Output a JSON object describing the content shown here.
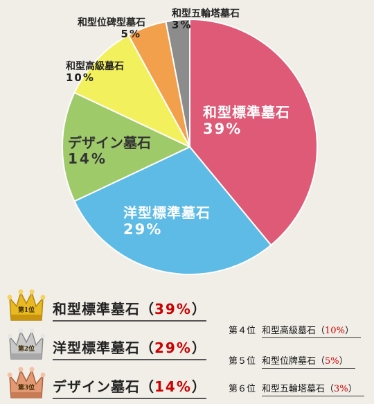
{
  "chart_data": {
    "type": "pie",
    "categories": [
      "和型標準墓石",
      "洋型標準墓石",
      "デザイン墓石",
      "和型高級墓石",
      "和型位碑型墓石",
      "和型五輪塔墓石"
    ],
    "values": [
      39,
      29,
      14,
      10,
      5,
      3
    ],
    "colors": [
      "#de5a76",
      "#5ebbe6",
      "#9fca6a",
      "#f3f05e",
      "#f2a04c",
      "#8c8c8c"
    ],
    "value_labels": [
      "39%",
      "29%",
      "14%",
      "10%",
      "5%",
      "3%"
    ],
    "title": ""
  },
  "ranking": {
    "top": [
      {
        "badge": "第1位",
        "name": "和型標準墓石",
        "open": "（",
        "pct": "39%",
        "close": "）",
        "medal": "gold"
      },
      {
        "badge": "第2位",
        "name": "洋型標準墓石",
        "open": "（",
        "pct": "29%",
        "close": "）",
        "medal": "silver"
      },
      {
        "badge": "第3位",
        "name": "デザイン墓石",
        "open": "（",
        "pct": "14%",
        "close": "）",
        "medal": "bronze"
      }
    ],
    "others": [
      {
        "pos": "第４位",
        "name": "和型高級墓石",
        "open": "（",
        "pct": "10%",
        "close": "）"
      },
      {
        "pos": "第５位",
        "name": "和型位牌墓石",
        "open": "（",
        "pct": "5%",
        "close": "）"
      },
      {
        "pos": "第６位",
        "name": "和型五輪塔墓石",
        "open": "（",
        "pct": "3%",
        "close": "）"
      }
    ]
  }
}
